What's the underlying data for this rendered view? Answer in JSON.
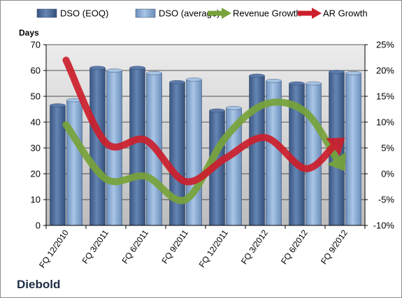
{
  "chart_data": {
    "type": "bar",
    "categories": [
      "FQ 12/2010",
      "FQ 3/2011",
      "FQ 6/2011",
      "FQ 9/2011",
      "FQ 12/2011",
      "FQ 3/2012",
      "FQ 6/2012",
      "FQ 9/2012"
    ],
    "series": [
      {
        "name": "DSO (EOQ)",
        "kind": "bar",
        "axis": "left",
        "color": "#4f6e9c",
        "values": [
          46.5,
          61,
          61,
          55.5,
          44.5,
          58,
          55,
          59.5
        ]
      },
      {
        "name": "DSO (average)",
        "kind": "bar",
        "axis": "left",
        "color": "#8fb4dd",
        "values": [
          48.5,
          60,
          59,
          56.5,
          45.5,
          56,
          55,
          59
        ]
      },
      {
        "name": "Revenue Growth",
        "kind": "arrow-line",
        "axis": "right",
        "color": "#77a33a",
        "values": [
          9.5,
          -1,
          -0.5,
          -5,
          7,
          13.5,
          12,
          0.5
        ]
      },
      {
        "name": "AR Growth",
        "kind": "arrow-line",
        "axis": "right",
        "color": "#cc1e2b",
        "values": [
          22,
          6,
          6.5,
          -1.5,
          3,
          7,
          1,
          7
        ]
      }
    ],
    "ylabel": "Days",
    "y_left": {
      "min": 0,
      "max": 70,
      "ticks": [
        "0",
        "10",
        "20",
        "30",
        "40",
        "50",
        "60",
        "70"
      ]
    },
    "y_right": {
      "min": -10,
      "max": 25,
      "ticks": [
        "-10%",
        "-5%",
        "0%",
        "5%",
        "10%",
        "15%",
        "20%",
        "25%"
      ]
    },
    "grid": true,
    "legend_position": "top"
  },
  "company": "Diebold"
}
